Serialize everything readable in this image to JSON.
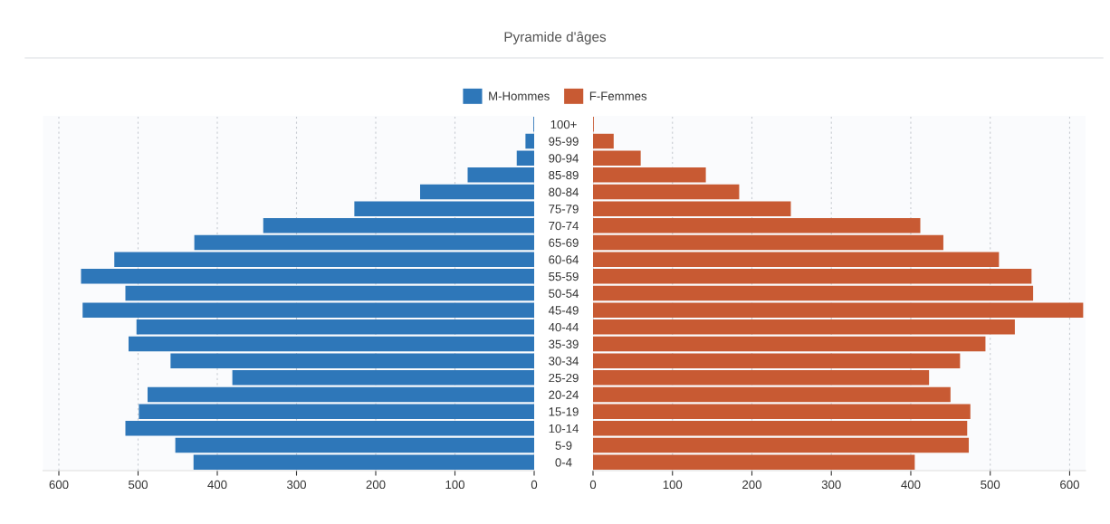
{
  "chart_data": [
    {
      "type": "bar",
      "orientation": "horizontal",
      "title": "Pyramide d'âges",
      "legend": "top",
      "grid": "x",
      "categories": [
        "100+",
        "95-99",
        "90-94",
        "85-89",
        "80-84",
        "75-79",
        "70-74",
        "65-69",
        "60-64",
        "55-59",
        "50-54",
        "45-49",
        "40-44",
        "35-39",
        "30-34",
        "25-29",
        "20-24",
        "15-19",
        "10-14",
        "5-9",
        "0-4"
      ],
      "xlim": [
        620,
        0
      ],
      "xticks": [
        600,
        500,
        400,
        300,
        200,
        100,
        0
      ],
      "series": [
        {
          "name": "M-Hommes",
          "color": "#2e77b9",
          "values": [
            1,
            11,
            22,
            84,
            144,
            227,
            342,
            429,
            530,
            572,
            516,
            570,
            502,
            512,
            459,
            381,
            488,
            499,
            516,
            453,
            430
          ]
        }
      ]
    },
    {
      "type": "bar",
      "orientation": "horizontal",
      "legend": "top",
      "grid": "x",
      "tick_labels": "x",
      "categories": [
        null,
        null,
        null,
        null,
        null,
        null,
        null,
        null,
        null,
        null,
        null,
        null,
        null,
        null,
        null,
        null,
        null,
        null,
        null,
        null,
        null
      ],
      "xlim": [
        0,
        620
      ],
      "xticks": [
        0,
        100,
        200,
        300,
        400,
        500,
        600
      ],
      "series": [
        {
          "name": "F-Femmes",
          "color": "#c85a33",
          "values": [
            1,
            26,
            60,
            142,
            184,
            249,
            412,
            441,
            511,
            552,
            554,
            617,
            531,
            494,
            462,
            423,
            450,
            475,
            471,
            473,
            405
          ]
        }
      ]
    }
  ]
}
